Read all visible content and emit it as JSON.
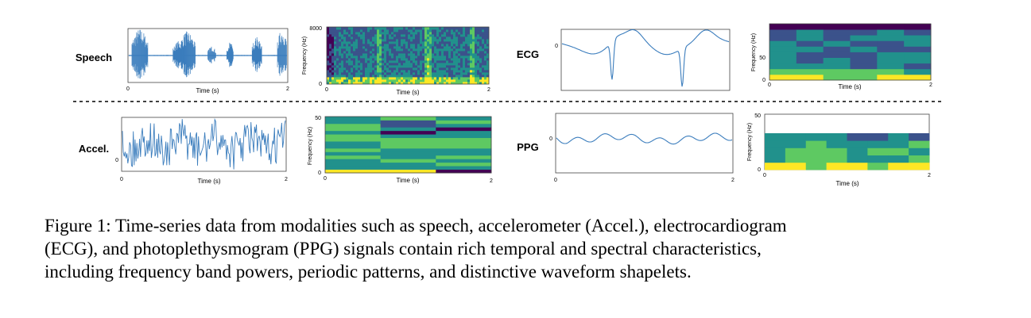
{
  "figure": {
    "rows": [
      {
        "panels": [
          {
            "label": "Speech",
            "signal_kind": "speech",
            "wave": {
              "xlabel": "Time (s)",
              "xticks": [
                "0",
                "2"
              ]
            },
            "spec": {
              "xlabel": "Time (s)",
              "ylabel": "Frequency (Hz)",
              "xticks": [
                "0",
                "2"
              ],
              "yticks": [
                "0",
                "8000"
              ]
            }
          },
          {
            "label": "ECG",
            "signal_kind": "ecg",
            "wave": {
              "xlabel": "",
              "yticks": [
                "0"
              ]
            },
            "spec": {
              "xlabel": "Time (s)",
              "ylabel": "Frequency (Hz)",
              "xticks": [
                "0",
                "2"
              ],
              "yticks": [
                "0",
                "50"
              ]
            }
          }
        ]
      },
      {
        "panels": [
          {
            "label": "Accel.",
            "signal_kind": "accel",
            "wave": {
              "xlabel": "Time (s)",
              "xticks": [
                "0",
                "2"
              ],
              "yticks": [
                "0"
              ]
            },
            "spec": {
              "xlabel": "Time (s)",
              "ylabel": "Frequency (Hz)",
              "xticks": [
                "0",
                "2"
              ],
              "yticks": [
                "0",
                "50"
              ]
            }
          },
          {
            "label": "PPG",
            "signal_kind": "ppg",
            "wave": {
              "xlabel": "",
              "xticks": [
                "0",
                "2"
              ],
              "yticks": [
                "0"
              ]
            },
            "spec": {
              "xlabel": "Time (s)",
              "ylabel": "Frequency (Hz)",
              "xticks": [
                "0",
                "2"
              ],
              "yticks": [
                "0",
                "50"
              ]
            }
          }
        ]
      }
    ],
    "colors": {
      "line": "#3b7dbd",
      "viridis": [
        "#440154",
        "#3b528b",
        "#21918c",
        "#5ec962",
        "#fde725"
      ]
    }
  },
  "caption": {
    "lines": [
      "Figure 1: Time-series data from modalities such as speech, accelerometer (Accel.), electrocardiogram",
      "(ECG), and photoplethysmogram (PPG) signals contain rich temporal and spectral characteristics,",
      "including frequency band powers, periodic patterns, and distinctive waveform shapelets."
    ]
  }
}
